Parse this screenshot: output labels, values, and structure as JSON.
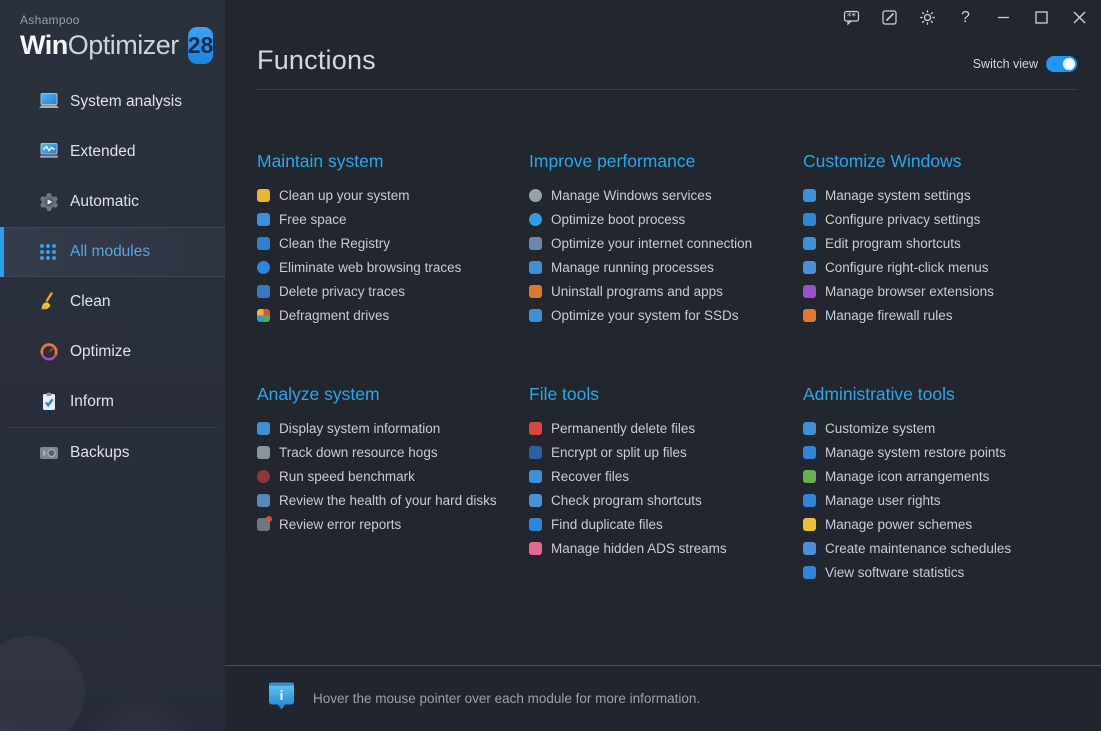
{
  "window": {
    "titlebar": {
      "icons": [
        "feedback-icon",
        "notes-icon",
        "settings-gear-icon",
        "help-icon",
        "minimize-icon",
        "maximize-icon",
        "close-icon"
      ],
      "help_glyph": "?"
    }
  },
  "colors": {
    "accent_blue": "#2ba6e8",
    "toggle_on": "#2196f3",
    "sidebar_bg": "#2a2f3c",
    "main_bg": "#22262e",
    "selected_text": "#55a6e4"
  },
  "sidebar": {
    "brand": {
      "company": "Ashampoo",
      "product_bold": "Win",
      "product_light": "Optimizer",
      "version": "28"
    },
    "items": [
      {
        "label": "System analysis",
        "icon": "system-analysis-icon",
        "selected": false
      },
      {
        "label": "Extended",
        "icon": "extended-analysis-icon",
        "selected": false
      },
      {
        "label": "Automatic",
        "icon": "automatic-icon",
        "selected": false
      },
      {
        "label": "All modules",
        "icon": "all-modules-grid-icon",
        "selected": true
      },
      {
        "label": "Clean",
        "icon": "clean-broom-icon",
        "selected": false
      },
      {
        "label": "Optimize",
        "icon": "optimize-gauge-icon",
        "selected": false
      },
      {
        "label": "Inform",
        "icon": "inform-clipboard-icon",
        "selected": false
      },
      {
        "label": "Backups",
        "icon": "backups-icon",
        "selected": false
      }
    ]
  },
  "header": {
    "title": "Functions",
    "switch": {
      "label": "Switch view",
      "on": true
    }
  },
  "sections": [
    {
      "title": "Maintain system",
      "items": [
        {
          "label": "Clean up your system",
          "icon": "broom-icon",
          "color": "#e9b42f"
        },
        {
          "label": "Free space",
          "icon": "free-space-drive-icon",
          "color": "#3d8fd8"
        },
        {
          "label": "Clean the Registry",
          "icon": "registry-clean-icon",
          "color": "#2f7fd0"
        },
        {
          "label": "Eliminate web browsing traces",
          "icon": "web-traces-globe-icon",
          "color": "#2f86d8",
          "shape": "circle"
        },
        {
          "label": "Delete privacy traces",
          "icon": "privacy-traces-shield-icon",
          "color": "#3a77c2"
        },
        {
          "label": "Defragment drives",
          "icon": "defrag-blocks-icon",
          "shape": "quad",
          "quad_colors": [
            "#d84f43",
            "#4caf50",
            "#3d8fd8",
            "#e8b931"
          ]
        }
      ]
    },
    {
      "title": "Improve performance",
      "items": [
        {
          "label": "Manage Windows services",
          "icon": "services-gears-icon",
          "color": "#98a0aa",
          "shape": "circle"
        },
        {
          "label": "Optimize boot process",
          "icon": "boot-process-icon",
          "color": "#2f9de0",
          "shape": "circle"
        },
        {
          "label": "Optimize your internet connection",
          "icon": "internet-connection-icon",
          "color": "#6b86a8"
        },
        {
          "label": "Manage running processes",
          "icon": "running-processes-icon",
          "color": "#3f8fd6"
        },
        {
          "label": "Uninstall programs and apps",
          "icon": "uninstall-icon",
          "color": "#e0772e"
        },
        {
          "label": "Optimize your system for SSDs",
          "icon": "ssd-icon",
          "color": "#3f8fd6"
        }
      ]
    },
    {
      "title": "Customize Windows",
      "items": [
        {
          "label": "Manage system settings",
          "icon": "system-settings-icon",
          "color": "#3f8fd6"
        },
        {
          "label": "Configure privacy settings",
          "icon": "privacy-settings-icon",
          "color": "#2f86d8"
        },
        {
          "label": "Edit program shortcuts",
          "icon": "program-shortcuts-icon",
          "color": "#3f8fd6"
        },
        {
          "label": "Configure right-click menus",
          "icon": "context-menu-icon",
          "color": "#4a90d9"
        },
        {
          "label": "Manage browser extensions",
          "icon": "browser-extensions-puzzle-icon",
          "color": "#9b4fc8"
        },
        {
          "label": "Manage firewall rules",
          "icon": "firewall-flame-icon",
          "color": "#e07830"
        }
      ]
    },
    {
      "title": "Analyze system",
      "items": [
        {
          "label": "Display system information",
          "icon": "system-information-icon",
          "color": "#3f8fd6"
        },
        {
          "label": "Track down resource hogs",
          "icon": "resource-hogs-icon",
          "color": "#8a929c"
        },
        {
          "label": "Run speed benchmark",
          "icon": "benchmark-gauge-icon",
          "color": "#8a3a3c",
          "shape": "circle"
        },
        {
          "label": "Review the health of your hard disks",
          "icon": "disk-health-icon",
          "color": "#5b87b8"
        },
        {
          "label": "Review error reports",
          "icon": "error-reports-icon",
          "color": "#6e7684",
          "badge": "#d84f43"
        }
      ]
    },
    {
      "title": "File tools",
      "items": [
        {
          "label": "Permanently delete files",
          "icon": "delete-files-bin-icon",
          "color": "#d9463e"
        },
        {
          "label": "Encrypt or split up files",
          "icon": "encrypt-split-icon",
          "color": "#2e5f9e"
        },
        {
          "label": "Recover files",
          "icon": "recover-files-icon",
          "color": "#3f8fd6"
        },
        {
          "label": "Check program shortcuts",
          "icon": "check-shortcuts-link-icon",
          "color": "#4a90d9"
        },
        {
          "label": "Find duplicate files",
          "icon": "duplicate-files-icon",
          "color": "#2f86d8"
        },
        {
          "label": "Manage hidden ADS streams",
          "icon": "ads-streams-folder-icon",
          "color": "#e26a90"
        }
      ]
    },
    {
      "title": "Administrative tools",
      "items": [
        {
          "label": "Customize system",
          "icon": "customize-system-icon",
          "color": "#3f8fd6"
        },
        {
          "label": "Manage system restore points",
          "icon": "restore-points-icon",
          "color": "#2f86d8"
        },
        {
          "label": "Manage icon arrangements",
          "icon": "icon-arrangements-icon",
          "color": "#66b04e"
        },
        {
          "label": "Manage user rights",
          "icon": "user-rights-icon",
          "color": "#2f86d8"
        },
        {
          "label": "Manage power schemes",
          "icon": "power-schemes-battery-icon",
          "color": "#e9c23a"
        },
        {
          "label": "Create maintenance schedules",
          "icon": "maintenance-schedules-icon",
          "color": "#4a90d9"
        },
        {
          "label": "View software statistics",
          "icon": "software-statistics-icon",
          "color": "#2f86d8"
        }
      ]
    }
  ],
  "footer": {
    "icon": "info-icon",
    "note": "Hover the mouse pointer over each module for more information."
  }
}
